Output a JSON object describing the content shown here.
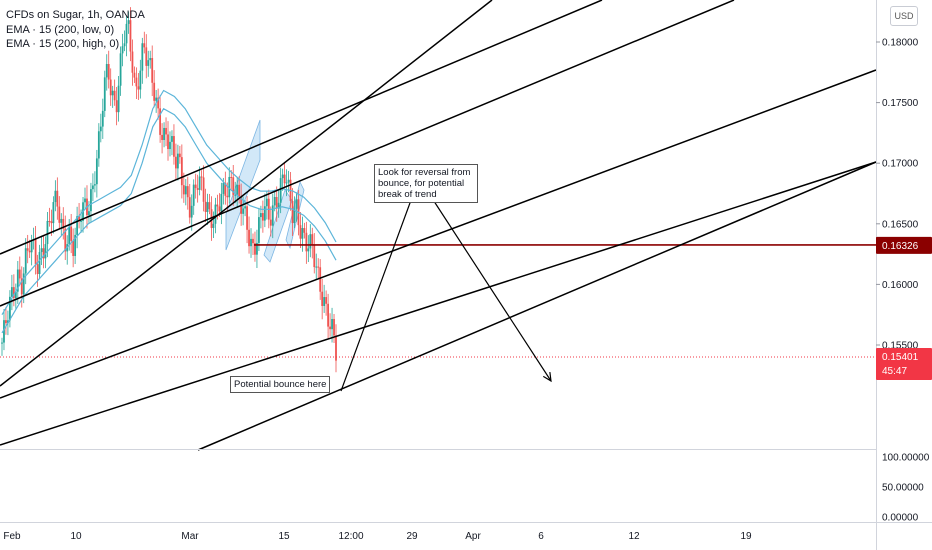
{
  "legend": {
    "symbol": "CFDs on Sugar, 1h, OANDA",
    "ema_low": "EMA · 15 (200, low, 0)",
    "ema_high": "EMA · 15 (200, high, 0)"
  },
  "currency": "USD",
  "annotations": {
    "reversal_note": [
      "Look for reversal from",
      "bounce, for potential",
      "break of trend"
    ],
    "bounce_note": "Potential bounce here"
  },
  "price_labels": {
    "level_line": "0.16326",
    "last_price": "0.15401",
    "countdown": "45:47"
  },
  "colors": {
    "candle_up": "#26a69a",
    "candle_down": "#ef5350",
    "ema": "#5cb5d9",
    "level_line": "#8b0000",
    "last_price": "#f23645",
    "channel_lines": "#000000",
    "pattern_fill": "#9cccf0"
  },
  "chart_data": {
    "type": "candlestick",
    "title": "CFDs on Sugar, 1h, OANDA",
    "price_axis": {
      "ticks": [
        "0.18000",
        "0.17500",
        "0.17000",
        "0.16500",
        "0.16000",
        "0.15500"
      ],
      "ylim": [
        0.151,
        0.1825
      ]
    },
    "time_axis": {
      "ticks": [
        "Feb",
        "10",
        "Mar",
        "15",
        "12:00",
        "29",
        "Apr",
        "6",
        "12",
        "19"
      ]
    },
    "indicator_pane": {
      "ticks": [
        "100.00000",
        "50.00000",
        "0.00000"
      ]
    },
    "close_path": [
      0.1552,
      0.1565,
      0.158,
      0.1595,
      0.161,
      0.1605,
      0.162,
      0.163,
      0.1625,
      0.1615,
      0.163,
      0.164,
      0.165,
      0.166,
      0.1665,
      0.165,
      0.164,
      0.1645,
      0.163,
      0.164,
      0.1655,
      0.1665,
      0.167,
      0.168,
      0.17,
      0.172,
      0.176,
      0.178,
      0.176,
      0.175,
      0.1775,
      0.18,
      0.181,
      0.179,
      0.176,
      0.178,
      0.1795,
      0.178,
      0.177,
      0.1755,
      0.174,
      0.1725,
      0.172,
      0.171,
      0.17,
      0.1705,
      0.169,
      0.1675,
      0.166,
      0.167,
      0.1685,
      0.168,
      0.167,
      0.166,
      0.165,
      0.166,
      0.167,
      0.168,
      0.169,
      0.1685,
      0.167,
      0.166,
      0.165,
      0.164,
      0.1632,
      0.1645,
      0.1655,
      0.166,
      0.165,
      0.1665,
      0.1675,
      0.1685,
      0.169,
      0.167,
      0.1655,
      0.1665,
      0.165,
      0.164,
      0.163,
      0.1625,
      0.161,
      0.16,
      0.159,
      0.1575,
      0.156,
      0.154
    ],
    "ema_low": [
      0.156,
      0.1575,
      0.159,
      0.16,
      0.161,
      0.162,
      0.163,
      0.164,
      0.165,
      0.1655,
      0.166,
      0.1665,
      0.1675,
      0.17,
      0.173,
      0.1745,
      0.174,
      0.173,
      0.1715,
      0.17,
      0.169,
      0.168,
      0.1672,
      0.1665,
      0.1662,
      0.1662,
      0.1664,
      0.1662,
      0.1657,
      0.1648,
      0.1636,
      0.162
    ],
    "ema_high": [
      0.1575,
      0.159,
      0.1605,
      0.1615,
      0.1625,
      0.1635,
      0.1645,
      0.1655,
      0.1665,
      0.167,
      0.1675,
      0.168,
      0.169,
      0.1715,
      0.1745,
      0.176,
      0.1755,
      0.1745,
      0.173,
      0.1715,
      0.1705,
      0.1695,
      0.1687,
      0.168,
      0.1677,
      0.1677,
      0.1679,
      0.1677,
      0.1672,
      0.1663,
      0.1651,
      0.1635
    ],
    "horizontal_level": 0.16326,
    "last_price": 0.15401
  }
}
